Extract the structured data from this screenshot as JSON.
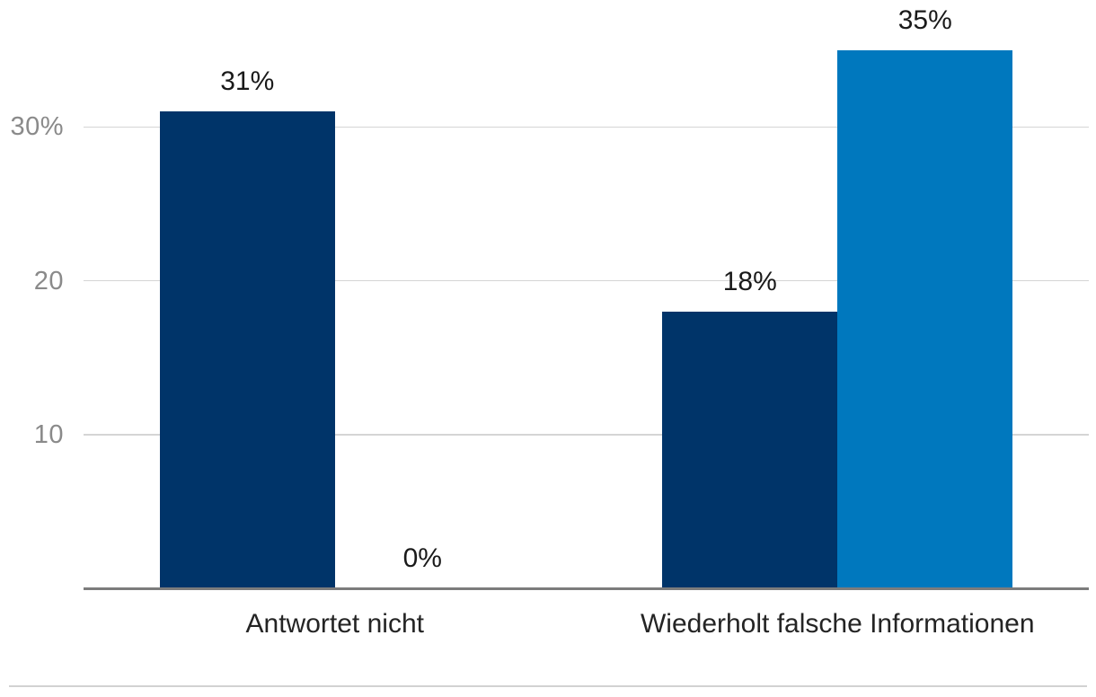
{
  "chart_data": {
    "type": "bar",
    "title": "",
    "xlabel": "",
    "ylabel": "",
    "categories": [
      "Antwortet nicht",
      "Wiederholt falsche Informationen"
    ],
    "series": [
      {
        "name": "navy",
        "color": "#003469",
        "values": [
          31,
          18
        ],
        "labels": [
          "31%",
          "18%"
        ]
      },
      {
        "name": "light-blue",
        "color": "#0078be",
        "values": [
          0,
          35
        ],
        "labels": [
          "0%",
          "35%"
        ]
      }
    ],
    "ylim": [
      0,
      38
    ],
    "yticks": [
      {
        "value": 10,
        "label": "10"
      },
      {
        "value": 20,
        "label": "20"
      },
      {
        "value": 30,
        "label": "30%"
      }
    ],
    "grid": true,
    "legend": false,
    "colors": {
      "background": "#ffffff",
      "gridline": "#d5d5d5",
      "axis_line": "#7c7c7c",
      "tick_label": "#8a8a8a",
      "value_label": "#1a1a1a",
      "category_label": "#242424",
      "footer_divider": "#d2d2d2"
    }
  }
}
